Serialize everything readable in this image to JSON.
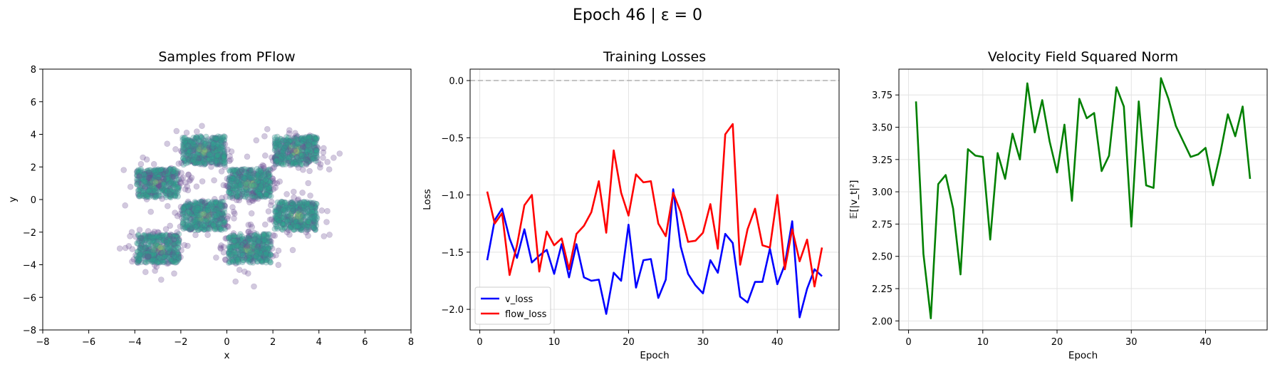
{
  "figure": {
    "suptitle": "Epoch 46 | ε = 0"
  },
  "chart_data": [
    {
      "type": "scatter",
      "title": "Samples from PFlow",
      "xlabel": "x",
      "ylabel": "y",
      "xlim": [
        -8,
        8
      ],
      "ylim": [
        -8,
        8
      ],
      "xticks": [
        -8,
        -6,
        -4,
        -2,
        0,
        2,
        4,
        6,
        8
      ],
      "yticks": [
        -8,
        -6,
        -4,
        -2,
        0,
        2,
        4,
        6,
        8
      ],
      "grid": false,
      "cluster_centers": [
        [
          -1,
          3
        ],
        [
          3,
          3
        ],
        [
          -3,
          1
        ],
        [
          1,
          1
        ],
        [
          -1,
          -1
        ],
        [
          3,
          -1
        ],
        [
          -3,
          -3
        ],
        [
          1,
          -3
        ]
      ],
      "cluster_halfwidth": 1,
      "colors": {
        "low_density": "#6a4c93",
        "mid_density": "#2a9d8f",
        "high_density": "#e9e05b"
      }
    },
    {
      "type": "line",
      "title": "Training Losses",
      "xlabel": "Epoch",
      "ylabel": "Loss",
      "xlim": [
        -1.3,
        48.3
      ],
      "ylim": [
        -2.18,
        0.1
      ],
      "xticks": [
        0,
        10,
        20,
        30,
        40
      ],
      "yticks": [
        0.0,
        -0.5,
        -1.0,
        -1.5,
        -2.0
      ],
      "ytick_labels": [
        "0.0",
        "−0.5",
        "−1.0",
        "−1.5",
        "−2.0"
      ],
      "grid": true,
      "legend": "lower-left",
      "reference_line_y": 0,
      "x": [
        1,
        2,
        3,
        4,
        5,
        6,
        7,
        8,
        9,
        10,
        11,
        12,
        13,
        14,
        15,
        16,
        17,
        18,
        19,
        20,
        21,
        22,
        23,
        24,
        25,
        26,
        27,
        28,
        29,
        30,
        31,
        32,
        33,
        34,
        35,
        36,
        37,
        38,
        39,
        40,
        41,
        42,
        43,
        44,
        45,
        46
      ],
      "series": [
        {
          "name": "v_loss",
          "color": "#0000ff",
          "values": [
            -1.57,
            -1.22,
            -1.12,
            -1.38,
            -1.55,
            -1.3,
            -1.59,
            -1.53,
            -1.48,
            -1.69,
            -1.43,
            -1.72,
            -1.43,
            -1.72,
            -1.75,
            -1.74,
            -2.04,
            -1.68,
            -1.75,
            -1.26,
            -1.81,
            -1.57,
            -1.56,
            -1.9,
            -1.74,
            -0.95,
            -1.45,
            -1.69,
            -1.79,
            -1.86,
            -1.57,
            -1.68,
            -1.34,
            -1.42,
            -1.89,
            -1.94,
            -1.76,
            -1.76,
            -1.47,
            -1.78,
            -1.61,
            -1.23,
            -2.07,
            -1.82,
            -1.65,
            -1.71
          ]
        },
        {
          "name": "flow_loss",
          "color": "#ff0000",
          "values": [
            -0.97,
            -1.25,
            -1.16,
            -1.7,
            -1.44,
            -1.09,
            -1.0,
            -1.67,
            -1.32,
            -1.44,
            -1.38,
            -1.65,
            -1.34,
            -1.27,
            -1.15,
            -0.88,
            -1.33,
            -0.61,
            -0.98,
            -1.18,
            -0.82,
            -0.89,
            -0.88,
            -1.25,
            -1.36,
            -0.98,
            -1.15,
            -1.41,
            -1.4,
            -1.33,
            -1.08,
            -1.47,
            -0.47,
            -0.38,
            -1.61,
            -1.3,
            -1.12,
            -1.44,
            -1.46,
            -1.0,
            -1.65,
            -1.3,
            -1.58,
            -1.39,
            -1.8,
            -1.46
          ]
        }
      ]
    },
    {
      "type": "line",
      "title": "Velocity Field Squared Norm",
      "xlabel": "Epoch",
      "ylabel": "𝔼[|v_t|²]",
      "xlim": [
        -1.3,
        48.3
      ],
      "ylim": [
        1.93,
        3.95
      ],
      "xticks": [
        0,
        10,
        20,
        30,
        40
      ],
      "yticks": [
        2.0,
        2.25,
        2.5,
        2.75,
        3.0,
        3.25,
        3.5,
        3.75
      ],
      "ytick_labels": [
        "2.00",
        "2.25",
        "2.50",
        "2.75",
        "3.00",
        "3.25",
        "3.50",
        "3.75"
      ],
      "grid": true,
      "x": [
        1,
        2,
        3,
        4,
        5,
        6,
        7,
        8,
        9,
        10,
        11,
        12,
        13,
        14,
        15,
        16,
        17,
        18,
        19,
        20,
        21,
        22,
        23,
        24,
        25,
        26,
        27,
        28,
        29,
        30,
        31,
        32,
        33,
        34,
        35,
        36,
        37,
        38,
        39,
        40,
        41,
        42,
        43,
        44,
        45,
        46
      ],
      "series": [
        {
          "color": "#008000",
          "values": [
            3.7,
            2.52,
            2.02,
            3.06,
            3.13,
            2.87,
            2.36,
            3.33,
            3.28,
            3.27,
            2.63,
            3.3,
            3.1,
            3.45,
            3.25,
            3.84,
            3.46,
            3.71,
            3.39,
            3.15,
            3.52,
            2.93,
            3.72,
            3.57,
            3.61,
            3.16,
            3.28,
            3.81,
            3.66,
            2.73,
            3.7,
            3.05,
            3.03,
            3.88,
            3.72,
            3.51,
            3.39,
            3.27,
            3.29,
            3.34,
            3.05,
            3.3,
            3.6,
            3.43,
            3.66,
            3.1
          ]
        }
      ]
    }
  ]
}
